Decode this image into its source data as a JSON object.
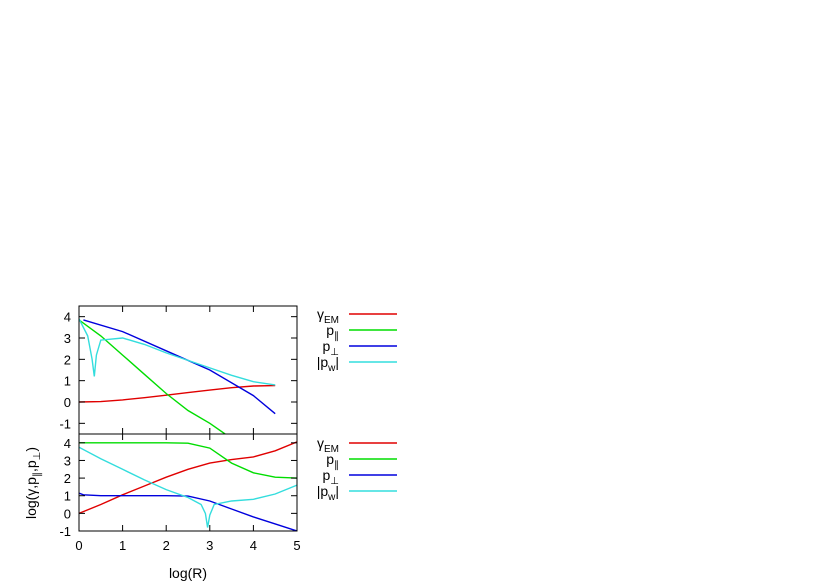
{
  "chart_data": [
    {
      "type": "line",
      "xlim": [
        0,
        5
      ],
      "ylim": [
        -1.5,
        4.5
      ],
      "x_ticks": [
        0,
        1,
        2,
        3,
        4,
        5
      ],
      "y_ticks": [
        -1,
        0,
        1,
        2,
        3,
        4
      ],
      "x_tick_labels_visible": false,
      "grid": false,
      "legend_position": "right",
      "series": [
        {
          "name": "γ_EM",
          "color": "#e00000",
          "points": [
            [
              0,
              0
            ],
            [
              0.5,
              0.02
            ],
            [
              1,
              0.1
            ],
            [
              1.5,
              0.2
            ],
            [
              2,
              0.32
            ],
            [
              2.5,
              0.44
            ],
            [
              3,
              0.56
            ],
            [
              3.5,
              0.67
            ],
            [
              4,
              0.75
            ],
            [
              4.5,
              0.77
            ]
          ]
        },
        {
          "name": "p_∥",
          "color": "#00dd00",
          "points": [
            [
              0,
              3.85
            ],
            [
              0.5,
              3.1
            ],
            [
              1,
              2.2
            ],
            [
              1.5,
              1.3
            ],
            [
              2,
              0.4
            ],
            [
              2.5,
              -0.4
            ],
            [
              3,
              -1.0
            ],
            [
              3.35,
              -1.5
            ]
          ]
        },
        {
          "name": "p_⊥",
          "color": "#0000dd",
          "points": [
            [
              0.1,
              3.85
            ],
            [
              1,
              3.3
            ],
            [
              2,
              2.4
            ],
            [
              3,
              1.5
            ],
            [
              4,
              0.3
            ],
            [
              4.5,
              -0.55
            ]
          ]
        },
        {
          "name": "|p_w|",
          "color": "#33dddd",
          "points": [
            [
              0,
              3.9
            ],
            [
              0.2,
              3.1
            ],
            [
              0.3,
              2.0
            ],
            [
              0.35,
              1.2
            ],
            [
              0.4,
              2.2
            ],
            [
              0.5,
              2.9
            ],
            [
              1,
              3.0
            ],
            [
              1.5,
              2.7
            ],
            [
              2,
              2.3
            ],
            [
              2.5,
              1.95
            ],
            [
              3,
              1.6
            ],
            [
              3.5,
              1.25
            ],
            [
              4,
              0.95
            ],
            [
              4.5,
              0.8
            ]
          ]
        }
      ]
    },
    {
      "type": "line",
      "xlabel": "log(R)",
      "ylabel": "log(γ,p∥,p⊥)",
      "xlim": [
        0,
        5
      ],
      "ylim": [
        -1,
        4.5
      ],
      "x_ticks": [
        0,
        1,
        2,
        3,
        4,
        5
      ],
      "y_ticks": [
        -1,
        0,
        1,
        2,
        3,
        4
      ],
      "grid": false,
      "legend_position": "right",
      "series": [
        {
          "name": "γ_EM",
          "color": "#e00000",
          "points": [
            [
              0,
              0
            ],
            [
              0.5,
              0.5
            ],
            [
              1,
              1.05
            ],
            [
              1.5,
              1.55
            ],
            [
              2,
              2.05
            ],
            [
              2.5,
              2.5
            ],
            [
              3,
              2.85
            ],
            [
              3.5,
              3.05
            ],
            [
              4,
              3.2
            ],
            [
              4.5,
              3.55
            ],
            [
              5,
              4.05
            ]
          ]
        },
        {
          "name": "p_∥",
          "color": "#00dd00",
          "points": [
            [
              0,
              4.0
            ],
            [
              1,
              4.0
            ],
            [
              2,
              4.0
            ],
            [
              2.5,
              3.98
            ],
            [
              3,
              3.7
            ],
            [
              3.5,
              2.85
            ],
            [
              4,
              2.3
            ],
            [
              4.5,
              2.05
            ],
            [
              5,
              2.0
            ]
          ]
        },
        {
          "name": "p_⊥",
          "color": "#0000dd",
          "points": [
            [
              0,
              1.15
            ],
            [
              0.1,
              1.05
            ],
            [
              0.5,
              1.0
            ],
            [
              1,
              1.0
            ],
            [
              2,
              1.0
            ],
            [
              2.5,
              0.98
            ],
            [
              3,
              0.7
            ],
            [
              3.5,
              0.25
            ],
            [
              4,
              -0.2
            ],
            [
              4.5,
              -0.6
            ],
            [
              5,
              -1.0
            ]
          ]
        },
        {
          "name": "|p_w|",
          "color": "#33dddd",
          "points": [
            [
              0,
              3.75
            ],
            [
              0.5,
              3.1
            ],
            [
              1,
              2.5
            ],
            [
              1.5,
              1.9
            ],
            [
              2,
              1.35
            ],
            [
              2.5,
              0.9
            ],
            [
              2.8,
              0.5
            ],
            [
              2.9,
              0.0
            ],
            [
              2.95,
              -0.8
            ],
            [
              3.0,
              -0.1
            ],
            [
              3.1,
              0.5
            ],
            [
              3.5,
              0.7
            ],
            [
              4,
              0.8
            ],
            [
              4.5,
              1.1
            ],
            [
              5,
              1.6
            ]
          ]
        }
      ]
    }
  ]
}
